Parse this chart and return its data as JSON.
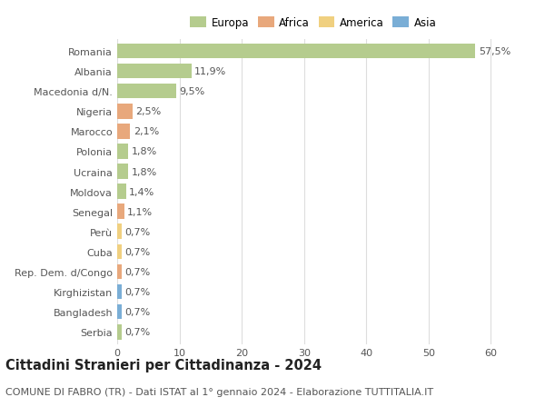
{
  "categories": [
    "Romania",
    "Albania",
    "Macedonia d/N.",
    "Nigeria",
    "Marocco",
    "Polonia",
    "Ucraina",
    "Moldova",
    "Senegal",
    "Perù",
    "Cuba",
    "Rep. Dem. d/Congo",
    "Kirghizistan",
    "Bangladesh",
    "Serbia"
  ],
  "values": [
    57.5,
    11.9,
    9.5,
    2.5,
    2.1,
    1.8,
    1.8,
    1.4,
    1.1,
    0.7,
    0.7,
    0.7,
    0.7,
    0.7,
    0.7
  ],
  "labels": [
    "57,5%",
    "11,9%",
    "9,5%",
    "2,5%",
    "2,1%",
    "1,8%",
    "1,8%",
    "1,4%",
    "1,1%",
    "0,7%",
    "0,7%",
    "0,7%",
    "0,7%",
    "0,7%",
    "0,7%"
  ],
  "continents": [
    "Europa",
    "Europa",
    "Europa",
    "Africa",
    "Africa",
    "Europa",
    "Europa",
    "Europa",
    "Africa",
    "America",
    "America",
    "Africa",
    "Asia",
    "Asia",
    "Europa"
  ],
  "continent_colors": {
    "Europa": "#b5cc8e",
    "Africa": "#e8a87c",
    "America": "#f0d080",
    "Asia": "#7aaed6"
  },
  "legend_order": [
    "Europa",
    "Africa",
    "America",
    "Asia"
  ],
  "title": "Cittadini Stranieri per Cittadinanza - 2024",
  "subtitle": "COMUNE DI FABRO (TR) - Dati ISTAT al 1° gennaio 2024 - Elaborazione TUTTITALIA.IT",
  "xlim": [
    0,
    63
  ],
  "xticks": [
    0,
    10,
    20,
    30,
    40,
    50,
    60
  ],
  "background_color": "#ffffff",
  "grid_color": "#dddddd",
  "bar_height": 0.75,
  "title_fontsize": 10.5,
  "subtitle_fontsize": 8,
  "tick_fontsize": 8,
  "label_fontsize": 8
}
